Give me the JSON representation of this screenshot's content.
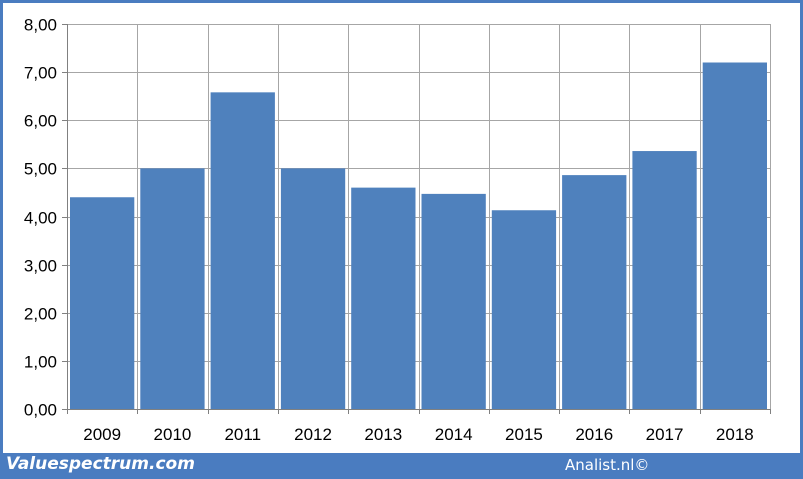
{
  "chart_data": {
    "type": "bar",
    "categories": [
      "2009",
      "2010",
      "2011",
      "2012",
      "2013",
      "2014",
      "2015",
      "2016",
      "2017",
      "2018"
    ],
    "values": [
      4.4,
      5.0,
      6.58,
      5.0,
      4.6,
      4.47,
      4.13,
      4.86,
      5.36,
      7.2
    ],
    "ylim": [
      0,
      8
    ],
    "yticks": [
      0,
      1,
      2,
      3,
      4,
      5,
      6,
      7,
      8
    ],
    "ytick_labels": [
      "0,00",
      "1,00",
      "2,00",
      "3,00",
      "4,00",
      "5,00",
      "6,00",
      "7,00",
      "8,00"
    ],
    "grid": true,
    "bar_color": "#4f81bd",
    "grid_color": "#a6a6a6"
  },
  "footer": {
    "left": "Valuespectrum.com",
    "right": "Analist.nl©"
  }
}
